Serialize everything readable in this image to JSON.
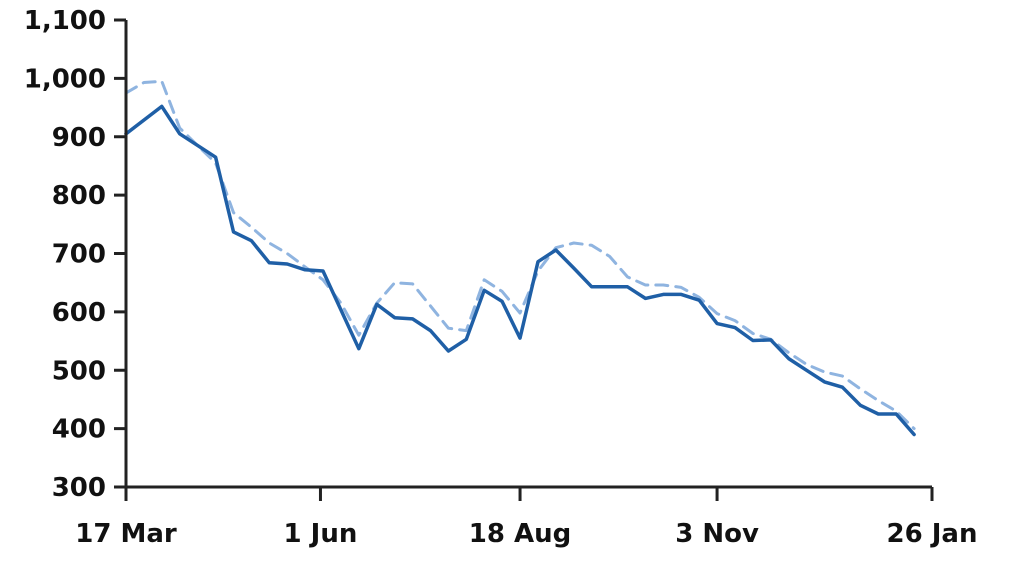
{
  "chart_data": {
    "type": "line",
    "x_axis": {
      "kind": "date",
      "start": "17 Mar",
      "end": "26 Jan",
      "ticks": [
        {
          "label": "17 Mar",
          "day": 0
        },
        {
          "label": "1 Jun",
          "day": 76
        },
        {
          "label": "18 Aug",
          "day": 154
        },
        {
          "label": "3 Nov",
          "day": 231
        },
        {
          "label": "26 Jan",
          "day": 315
        }
      ]
    },
    "y_axis": {
      "ylim": [
        300,
        1100
      ],
      "ticks": [
        300,
        400,
        500,
        600,
        700,
        800,
        900,
        1000,
        1100
      ],
      "tick_labels": [
        "300",
        "400",
        "500",
        "600",
        "700",
        "800",
        "900",
        "1,000",
        "1,100"
      ]
    },
    "grid": false,
    "legend": "none",
    "series": [
      {
        "style": "solid",
        "color": "#1f5fa6",
        "points": [
          [
            0,
            905
          ],
          [
            14,
            952
          ],
          [
            21,
            905
          ],
          [
            35,
            865
          ],
          [
            42,
            737
          ],
          [
            49,
            722
          ],
          [
            56,
            684
          ],
          [
            63,
            682
          ],
          [
            70,
            672
          ],
          [
            77,
            670
          ],
          [
            91,
            537
          ],
          [
            98,
            613
          ],
          [
            105,
            590
          ],
          [
            112,
            588
          ],
          [
            119,
            568
          ],
          [
            126,
            533
          ],
          [
            133,
            553
          ],
          [
            140,
            637
          ],
          [
            147,
            618
          ],
          [
            154,
            555
          ],
          [
            161,
            686
          ],
          [
            168,
            706
          ],
          [
            175,
            675
          ],
          [
            182,
            643
          ],
          [
            189,
            643
          ],
          [
            196,
            643
          ],
          [
            203,
            623
          ],
          [
            210,
            630
          ],
          [
            217,
            630
          ],
          [
            224,
            620
          ],
          [
            231,
            580
          ],
          [
            238,
            573
          ],
          [
            245,
            551
          ],
          [
            252,
            552
          ],
          [
            259,
            520
          ],
          [
            266,
            500
          ],
          [
            273,
            480
          ],
          [
            280,
            471
          ],
          [
            287,
            440
          ],
          [
            294,
            425
          ],
          [
            301,
            425
          ],
          [
            308,
            390
          ]
        ]
      },
      {
        "style": "dashed",
        "color": "#8fb4e0",
        "points": [
          [
            0,
            975
          ],
          [
            7,
            993
          ],
          [
            14,
            995
          ],
          [
            21,
            915
          ],
          [
            28,
            885
          ],
          [
            35,
            855
          ],
          [
            42,
            770
          ],
          [
            49,
            745
          ],
          [
            56,
            718
          ],
          [
            63,
            700
          ],
          [
            70,
            677
          ],
          [
            77,
            655
          ],
          [
            84,
            615
          ],
          [
            91,
            560
          ],
          [
            98,
            615
          ],
          [
            105,
            650
          ],
          [
            112,
            648
          ],
          [
            119,
            610
          ],
          [
            126,
            572
          ],
          [
            133,
            568
          ],
          [
            140,
            655
          ],
          [
            147,
            635
          ],
          [
            154,
            598
          ],
          [
            161,
            670
          ],
          [
            168,
            710
          ],
          [
            175,
            718
          ],
          [
            182,
            714
          ],
          [
            189,
            695
          ],
          [
            196,
            660
          ],
          [
            203,
            646
          ],
          [
            210,
            646
          ],
          [
            217,
            642
          ],
          [
            224,
            625
          ],
          [
            231,
            597
          ],
          [
            238,
            585
          ],
          [
            245,
            563
          ],
          [
            252,
            553
          ],
          [
            259,
            530
          ],
          [
            266,
            510
          ],
          [
            273,
            497
          ],
          [
            280,
            490
          ],
          [
            287,
            468
          ],
          [
            294,
            448
          ],
          [
            301,
            430
          ],
          [
            308,
            400
          ]
        ]
      }
    ]
  }
}
